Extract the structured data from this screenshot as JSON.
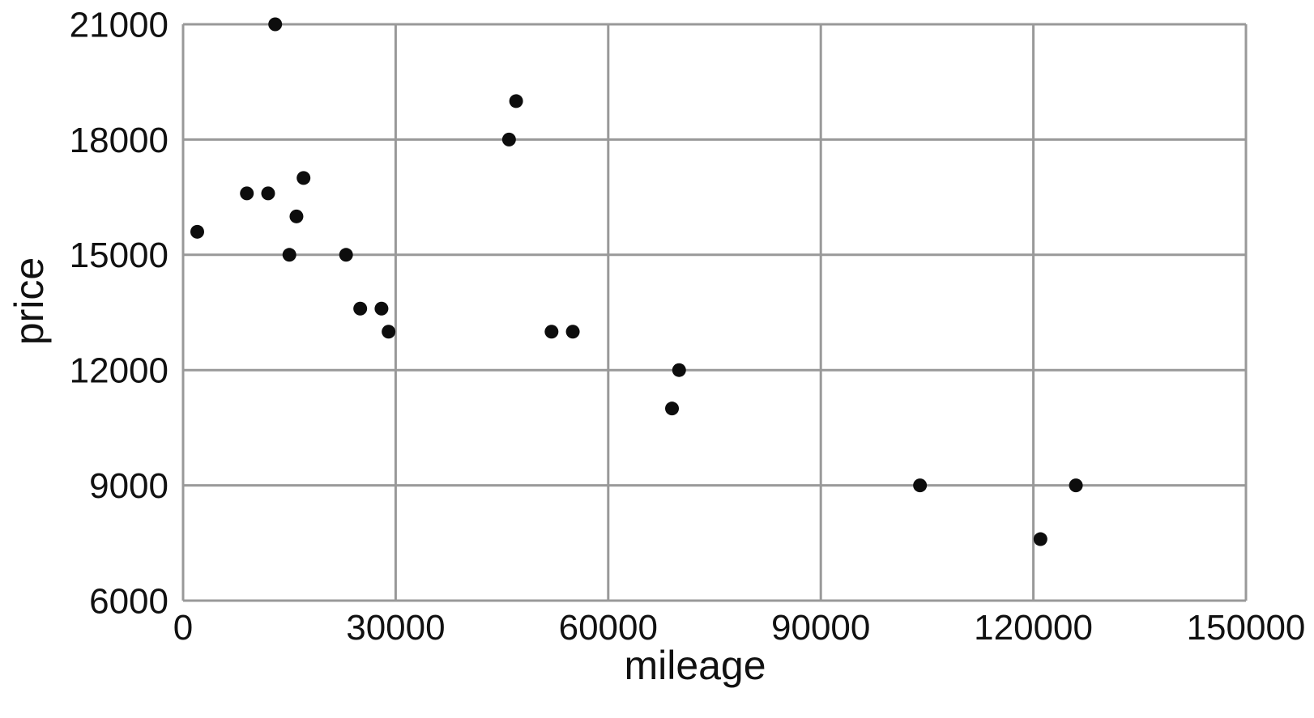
{
  "chart_data": {
    "type": "scatter",
    "title": "",
    "xlabel": "mileage",
    "ylabel": "price",
    "xlim": [
      0,
      150000
    ],
    "ylim": [
      6000,
      21000
    ],
    "x_ticks": [
      0,
      30000,
      60000,
      90000,
      120000,
      150000
    ],
    "y_ticks": [
      6000,
      9000,
      12000,
      15000,
      18000,
      21000
    ],
    "x_tick_labels": [
      "0",
      "30000",
      "60000",
      "90000",
      "120000",
      "150000"
    ],
    "y_tick_labels": [
      "6000",
      "9000",
      "12000",
      "15000",
      "18000",
      "21000"
    ],
    "grid": "major-on",
    "legend": "none",
    "marker": "filled-circle",
    "colors": {
      "point": "#0d0d0d",
      "grid": "#999999",
      "text": "#111111",
      "background": "#ffffff"
    },
    "points": [
      [
        2000,
        15600
      ],
      [
        9000,
        16600
      ],
      [
        12000,
        16600
      ],
      [
        13000,
        21000
      ],
      [
        15000,
        15000
      ],
      [
        16000,
        16000
      ],
      [
        17000,
        17000
      ],
      [
        23000,
        15000
      ],
      [
        25000,
        13600
      ],
      [
        28000,
        13600
      ],
      [
        29000,
        13000
      ],
      [
        46000,
        18000
      ],
      [
        47000,
        19000
      ],
      [
        52000,
        13000
      ],
      [
        55000,
        13000
      ],
      [
        69000,
        11000
      ],
      [
        70000,
        12000
      ],
      [
        104000,
        9000
      ],
      [
        121000,
        7600
      ],
      [
        126000,
        9000
      ]
    ]
  }
}
